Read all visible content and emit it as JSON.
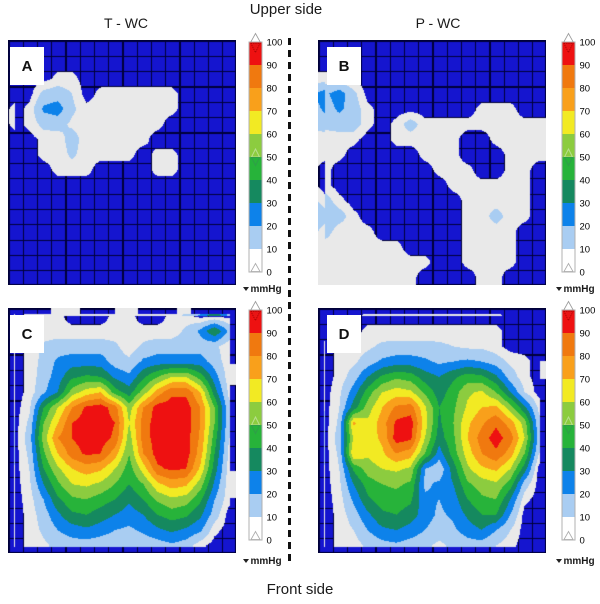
{
  "title_top": "Upper side",
  "title_bottom": "Front side",
  "columns": [
    {
      "label": "T - WC"
    },
    {
      "label": "P - WC"
    }
  ],
  "colorbar": {
    "unit": "mmHg",
    "ticks": [
      100,
      90,
      80,
      70,
      60,
      50,
      40,
      30,
      20,
      10,
      0
    ],
    "marker_value": 50,
    "bins": [
      {
        "range": [
          90,
          100
        ],
        "color": "#ee1111"
      },
      {
        "range": [
          80,
          90
        ],
        "color": "#f0790f"
      },
      {
        "range": [
          70,
          80
        ],
        "color": "#f9a01b"
      },
      {
        "range": [
          60,
          70
        ],
        "color": "#f2ea23"
      },
      {
        "range": [
          50,
          60
        ],
        "color": "#8ccc3f"
      },
      {
        "range": [
          40,
          50
        ],
        "color": "#27b33a"
      },
      {
        "range": [
          30,
          40
        ],
        "color": "#15895f"
      },
      {
        "range": [
          20,
          30
        ],
        "color": "#0d82ea"
      },
      {
        "range": [
          10,
          20
        ],
        "color": "#a9cdf2"
      },
      {
        "range": [
          0,
          10
        ],
        "color": "#ffffff"
      }
    ]
  },
  "chart_data": {
    "type": "heatmap",
    "unit": "mmHg",
    "grid_size": [
      16,
      16
    ],
    "value_range": [
      0,
      100
    ],
    "background_color": "#1515cf",
    "map_low_color": "#e9e9e9",
    "grid_line_color": "#000038",
    "panels": [
      {
        "letter": "A",
        "column": "T - WC",
        "side": "Upper side",
        "frame": false,
        "values": [
          [
            0,
            0,
            0,
            0,
            0,
            0,
            0,
            0,
            0,
            0,
            0,
            0,
            0,
            0,
            0,
            0
          ],
          [
            0,
            0,
            0,
            0,
            0,
            0,
            0,
            0,
            0,
            0,
            0,
            0,
            0,
            0,
            0,
            0
          ],
          [
            0,
            0,
            0,
            5,
            5,
            0,
            0,
            0,
            0,
            0,
            0,
            0,
            0,
            0,
            0,
            0
          ],
          [
            0,
            0,
            13,
            15,
            10,
            0,
            5,
            5,
            5,
            5,
            5,
            5,
            0,
            0,
            0,
            0
          ],
          [
            0,
            5,
            22,
            25,
            12,
            5,
            5,
            5,
            5,
            5,
            5,
            5,
            0,
            0,
            0,
            0
          ],
          [
            0,
            5,
            13,
            14,
            8,
            5,
            5,
            5,
            5,
            5,
            5,
            0,
            0,
            0,
            0,
            0
          ],
          [
            0,
            0,
            5,
            5,
            15,
            5,
            5,
            5,
            5,
            5,
            0,
            0,
            0,
            0,
            0,
            0
          ],
          [
            0,
            0,
            5,
            5,
            12,
            5,
            5,
            5,
            5,
            0,
            5,
            5,
            0,
            0,
            0,
            0
          ],
          [
            0,
            0,
            0,
            5,
            5,
            5,
            0,
            0,
            0,
            0,
            5,
            5,
            0,
            0,
            0,
            0
          ],
          [
            0,
            0,
            0,
            0,
            0,
            0,
            0,
            0,
            0,
            0,
            0,
            0,
            0,
            0,
            0,
            0
          ],
          [
            0,
            0,
            0,
            0,
            0,
            0,
            0,
            0,
            0,
            0,
            0,
            0,
            0,
            0,
            0,
            0
          ],
          [
            0,
            0,
            0,
            0,
            0,
            0,
            0,
            0,
            0,
            0,
            0,
            0,
            0,
            0,
            0,
            0
          ],
          [
            0,
            0,
            0,
            0,
            0,
            0,
            0,
            0,
            0,
            0,
            0,
            0,
            0,
            0,
            0,
            0
          ],
          [
            0,
            0,
            0,
            0,
            0,
            0,
            0,
            0,
            0,
            0,
            0,
            0,
            0,
            0,
            0,
            0
          ],
          [
            0,
            0,
            0,
            0,
            0,
            0,
            0,
            0,
            0,
            0,
            0,
            0,
            0,
            0,
            0,
            0
          ],
          [
            0,
            0,
            0,
            0,
            0,
            0,
            0,
            0,
            0,
            0,
            0,
            0,
            0,
            0,
            0,
            0
          ]
        ]
      },
      {
        "letter": "B",
        "column": "P - WC",
        "side": "Upper side",
        "frame": false,
        "values": [
          [
            0,
            0,
            0,
            0,
            0,
            0,
            0,
            0,
            0,
            0,
            0,
            0,
            0,
            0,
            0,
            0
          ],
          [
            0,
            0,
            0,
            0,
            0,
            0,
            0,
            0,
            0,
            0,
            0,
            0,
            0,
            0,
            0,
            0
          ],
          [
            5,
            5,
            0,
            0,
            0,
            0,
            0,
            0,
            0,
            0,
            0,
            0,
            0,
            0,
            0,
            0
          ],
          [
            18,
            25,
            13,
            0,
            0,
            0,
            0,
            0,
            0,
            0,
            0,
            0,
            0,
            0,
            0,
            0
          ],
          [
            15,
            22,
            15,
            5,
            0,
            0,
            0,
            0,
            0,
            0,
            0,
            5,
            5,
            5,
            0,
            0
          ],
          [
            13,
            15,
            15,
            5,
            0,
            5,
            15,
            5,
            5,
            5,
            5,
            5,
            5,
            5,
            5,
            5
          ],
          [
            5,
            5,
            5,
            0,
            0,
            5,
            5,
            5,
            5,
            5,
            0,
            0,
            5,
            5,
            5,
            5
          ],
          [
            5,
            5,
            0,
            0,
            0,
            0,
            0,
            5,
            5,
            5,
            0,
            0,
            0,
            5,
            5,
            5
          ],
          [
            5,
            0,
            0,
            0,
            0,
            0,
            0,
            0,
            5,
            5,
            5,
            0,
            0,
            5,
            5,
            0
          ],
          [
            5,
            0,
            0,
            0,
            0,
            0,
            0,
            0,
            0,
            5,
            5,
            5,
            5,
            5,
            5,
            0
          ],
          [
            15,
            5,
            0,
            0,
            0,
            0,
            0,
            0,
            0,
            0,
            5,
            5,
            5,
            5,
            5,
            0
          ],
          [
            18,
            15,
            5,
            0,
            0,
            0,
            0,
            0,
            0,
            0,
            5,
            5,
            15,
            5,
            5,
            0
          ],
          [
            15,
            5,
            5,
            5,
            0,
            0,
            0,
            0,
            0,
            0,
            5,
            5,
            5,
            5,
            0,
            0
          ],
          [
            5,
            5,
            5,
            5,
            5,
            5,
            0,
            0,
            0,
            0,
            5,
            5,
            5,
            5,
            0,
            0
          ],
          [
            5,
            5,
            5,
            5,
            5,
            5,
            5,
            5,
            0,
            0,
            5,
            5,
            5,
            5,
            0,
            0
          ],
          [
            5,
            5,
            5,
            5,
            5,
            5,
            5,
            0,
            0,
            0,
            0,
            5,
            5,
            0,
            0,
            0
          ]
        ]
      },
      {
        "letter": "C",
        "column": "T - WC",
        "side": "Front side",
        "frame": true,
        "top_tabs": [
          [
            3.0,
            5.0
          ],
          [
            7.5,
            9.1
          ],
          [
            11.8,
            12.8
          ]
        ],
        "right_tabs": [
          [
            3.6,
            5.0
          ],
          [
            10.6,
            12.4
          ]
        ],
        "values": [
          [
            0,
            0,
            5,
            5,
            0,
            0,
            0,
            5,
            5,
            0,
            0,
            5,
            5,
            0,
            0,
            0
          ],
          [
            0,
            5,
            5,
            5,
            5,
            5,
            5,
            5,
            5,
            5,
            5,
            5,
            12,
            22,
            40,
            18
          ],
          [
            0,
            5,
            12,
            15,
            15,
            15,
            15,
            12,
            5,
            12,
            15,
            15,
            15,
            15,
            12,
            5
          ],
          [
            0,
            5,
            13,
            22,
            25,
            25,
            25,
            15,
            12,
            22,
            25,
            25,
            25,
            25,
            15,
            5
          ],
          [
            0,
            5,
            15,
            25,
            38,
            42,
            40,
            28,
            22,
            38,
            50,
            60,
            60,
            45,
            25,
            5
          ],
          [
            0,
            5,
            18,
            30,
            55,
            65,
            70,
            45,
            35,
            55,
            75,
            88,
            88,
            70,
            35,
            8
          ],
          [
            0,
            8,
            40,
            60,
            80,
            92,
            95,
            85,
            55,
            80,
            95,
            95,
            95,
            80,
            50,
            12
          ],
          [
            0,
            12,
            50,
            70,
            90,
            95,
            95,
            90,
            60,
            85,
            95,
            95,
            95,
            80,
            50,
            12
          ],
          [
            0,
            15,
            55,
            80,
            90,
            95,
            95,
            88,
            55,
            85,
            95,
            95,
            95,
            78,
            45,
            10
          ],
          [
            0,
            12,
            48,
            70,
            85,
            92,
            90,
            75,
            50,
            80,
            95,
            95,
            95,
            75,
            40,
            8
          ],
          [
            0,
            10,
            40,
            58,
            70,
            75,
            72,
            60,
            45,
            65,
            88,
            92,
            90,
            68,
            35,
            6
          ],
          [
            0,
            8,
            30,
            48,
            60,
            62,
            58,
            50,
            40,
            50,
            68,
            75,
            72,
            55,
            28,
            5
          ],
          [
            0,
            6,
            20,
            38,
            48,
            50,
            45,
            40,
            32,
            40,
            52,
            58,
            55,
            42,
            20,
            5
          ],
          [
            0,
            5,
            15,
            28,
            38,
            40,
            35,
            30,
            25,
            30,
            40,
            45,
            42,
            32,
            15,
            0
          ],
          [
            0,
            5,
            12,
            20,
            25,
            28,
            25,
            20,
            18,
            22,
            28,
            32,
            28,
            22,
            5,
            0
          ],
          [
            0,
            5,
            8,
            13,
            15,
            15,
            13,
            12,
            10,
            13,
            15,
            18,
            15,
            5,
            0,
            0
          ]
        ]
      },
      {
        "letter": "D",
        "column": "P - WC",
        "side": "Front side",
        "frame": true,
        "right_tabs": [
          [
            3.4,
            4.6
          ]
        ],
        "values": [
          [
            0,
            0,
            0,
            0,
            0,
            0,
            0,
            0,
            0,
            0,
            0,
            0,
            0,
            0,
            0,
            0
          ],
          [
            0,
            0,
            0,
            5,
            5,
            5,
            5,
            5,
            5,
            5,
            5,
            5,
            5,
            0,
            0,
            0
          ],
          [
            0,
            5,
            5,
            8,
            12,
            13,
            13,
            13,
            12,
            10,
            8,
            8,
            5,
            0,
            0,
            0
          ],
          [
            0,
            5,
            8,
            15,
            22,
            25,
            25,
            22,
            18,
            20,
            22,
            20,
            15,
            8,
            5,
            0
          ],
          [
            0,
            5,
            15,
            30,
            42,
            48,
            45,
            35,
            30,
            38,
            45,
            42,
            32,
            15,
            5,
            0
          ],
          [
            0,
            8,
            25,
            45,
            60,
            65,
            62,
            48,
            35,
            45,
            58,
            62,
            50,
            30,
            10,
            0
          ],
          [
            0,
            10,
            35,
            55,
            70,
            82,
            85,
            62,
            40,
            48,
            62,
            70,
            72,
            55,
            32,
            8
          ],
          [
            0,
            12,
            72,
            62,
            75,
            92,
            95,
            65,
            38,
            50,
            68,
            78,
            88,
            75,
            55,
            12
          ],
          [
            0,
            15,
            62,
            65,
            72,
            95,
            92,
            60,
            35,
            48,
            70,
            85,
            95,
            85,
            60,
            15
          ],
          [
            0,
            12,
            70,
            62,
            68,
            80,
            75,
            50,
            25,
            45,
            65,
            80,
            88,
            75,
            50,
            10
          ],
          [
            0,
            10,
            42,
            55,
            60,
            62,
            58,
            20,
            12,
            35,
            58,
            68,
            72,
            60,
            35,
            0
          ],
          [
            0,
            8,
            30,
            45,
            50,
            52,
            48,
            18,
            22,
            30,
            48,
            55,
            58,
            45,
            15,
            0
          ],
          [
            0,
            6,
            22,
            38,
            45,
            46,
            42,
            22,
            20,
            25,
            40,
            48,
            50,
            30,
            5,
            0
          ],
          [
            0,
            5,
            15,
            28,
            38,
            40,
            35,
            25,
            18,
            22,
            32,
            40,
            40,
            20,
            0,
            0
          ],
          [
            0,
            5,
            10,
            20,
            28,
            30,
            26,
            20,
            14,
            18,
            25,
            30,
            20,
            10,
            0,
            0
          ],
          [
            0,
            5,
            6,
            12,
            16,
            18,
            15,
            12,
            8,
            12,
            15,
            15,
            10,
            5,
            0,
            0
          ]
        ]
      }
    ]
  }
}
